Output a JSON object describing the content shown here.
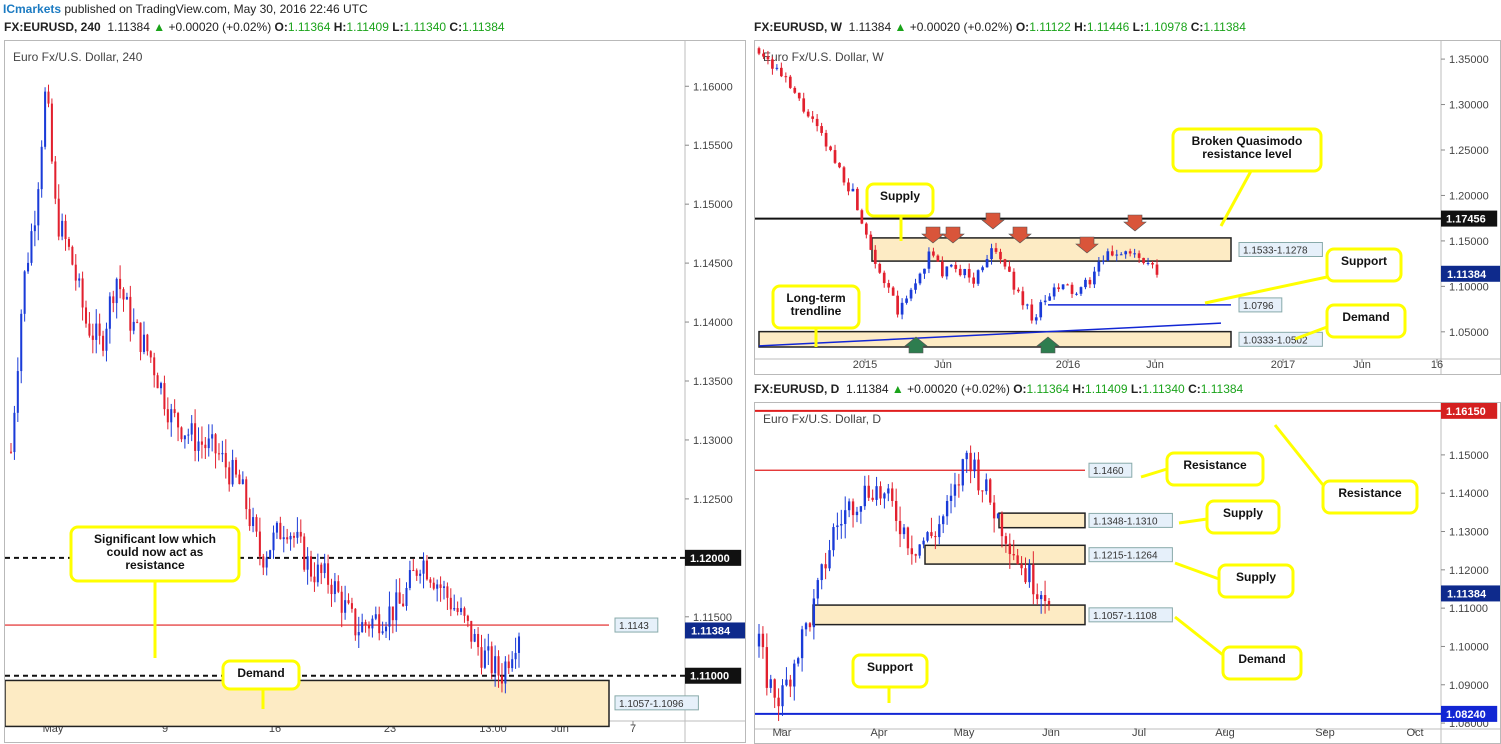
{
  "header": {
    "brand": "ICmarkets",
    "text": " published on TradingView.com, May 30, 2016 22:46 UTC"
  },
  "panels": {
    "h4": {
      "symbol": "FX:EURUSD, 240",
      "last": "1.11384",
      "change": "+0.00020 (+0.02%)",
      "o": "1.11364",
      "h": "1.11409",
      "l": "1.11340",
      "c": "1.11384",
      "title": "Euro Fx/U.S. Dollar, 240"
    },
    "w": {
      "symbol": "FX:EURUSD, W",
      "last": "1.11384",
      "change": "+0.00020 (+0.02%)",
      "o": "1.11122",
      "h": "1.11446",
      "l": "1.10978",
      "c": "1.11384",
      "title": "Euro Fx/U.S. Dollar, W"
    },
    "d": {
      "symbol": "FX:EURUSD, D",
      "last": "1.11384",
      "change": "+0.00020 (+0.02%)",
      "o": "1.11364",
      "h": "1.11409",
      "l": "1.11340",
      "c": "1.11384",
      "title": "Euro Fx/U.S. Dollar, D"
    }
  },
  "colors": {
    "up": "#1a3bd8",
    "down": "#e2202e",
    "zone_fill": "#fdebc4",
    "callout_border": "#ffff00",
    "support_line": "#1226d4",
    "resistance_line": "#e01e1e"
  },
  "chart_data": [
    {
      "id": "h4",
      "type": "candlestick",
      "title": "Euro Fx/U.S. Dollar, 240",
      "ylim": [
        1.1065,
        1.1635
      ],
      "yticks": [
        "1.16000",
        "1.15500",
        "1.15000",
        "1.14500",
        "1.14000",
        "1.13500",
        "1.13000",
        "1.12500",
        "1.12000",
        "1.11500",
        "1.11000"
      ],
      "xticks": [
        "May",
        "9",
        "16",
        "23",
        "13:00",
        "Jun",
        "7"
      ],
      "levels": [
        {
          "price": 1.12,
          "label": "1.12000",
          "style": "dashed"
        },
        {
          "price": 1.11,
          "label": "1.11000",
          "style": "dashed"
        },
        {
          "price": 1.1143,
          "label": "1.1143",
          "style": "red"
        }
      ],
      "zones": [
        {
          "from": 1.1057,
          "to": 1.1096,
          "label": "1.1057-1.1096"
        }
      ],
      "current": "1.11384",
      "callouts": [
        "Significant low which could now act as resistance",
        "Demand"
      ]
    },
    {
      "id": "w",
      "type": "candlestick",
      "title": "Euro Fx/U.S. Dollar, W",
      "ylim": [
        1.0245,
        1.3655
      ],
      "yticks": [
        "1.35000",
        "1.30000",
        "1.25000",
        "1.20000",
        "1.15000",
        "1.10000",
        "1.05000"
      ],
      "xticks": [
        "2015",
        "Jun",
        "2016",
        "Jun",
        "2017",
        "Jun",
        "16"
      ],
      "levels": [
        {
          "price": 1.17456,
          "label": "1.17456",
          "style": "black"
        },
        {
          "price": 1.0796,
          "label": "1.0796",
          "style": "blue"
        }
      ],
      "zones": [
        {
          "from": 1.1278,
          "to": 1.1533,
          "label": "1.1533-1.1278"
        },
        {
          "from": 1.0333,
          "to": 1.0502,
          "label": "1.0333-1.0502"
        }
      ],
      "current": "1.11384",
      "callouts": [
        "Broken Quasimodo resistance level",
        "Supply",
        "Support",
        "Long-term trendline",
        "Demand"
      ]
    },
    {
      "id": "d",
      "type": "candlestick",
      "title": "Euro Fx/U.S. Dollar, D",
      "ylim": [
        1.0795,
        1.1625
      ],
      "yticks": [
        "1.15000",
        "1.14000",
        "1.13000",
        "1.12000",
        "1.11000",
        "1.10000",
        "1.09000",
        "1.08000"
      ],
      "xticks": [
        "Mar",
        "Apr",
        "May",
        "Jun",
        "Jul",
        "Aug",
        "Sep",
        "Oct"
      ],
      "levels": [
        {
          "price": 1.1615,
          "label": "1.16150",
          "style": "red"
        },
        {
          "price": 1.146,
          "label": "1.1460",
          "style": "redthin"
        },
        {
          "price": 1.0824,
          "label": "1.08240",
          "style": "blue"
        }
      ],
      "zones": [
        {
          "from": 1.131,
          "to": 1.1348,
          "label": "1.1348-1.1310"
        },
        {
          "from": 1.1215,
          "to": 1.1264,
          "label": "1.1215-1.1264"
        },
        {
          "from": 1.1057,
          "to": 1.1108,
          "label": "1.1057-1.1108"
        }
      ],
      "current": "1.11384",
      "callouts": [
        "Resistance",
        "Resistance",
        "Supply",
        "Supply",
        "Demand",
        "Support"
      ]
    }
  ]
}
